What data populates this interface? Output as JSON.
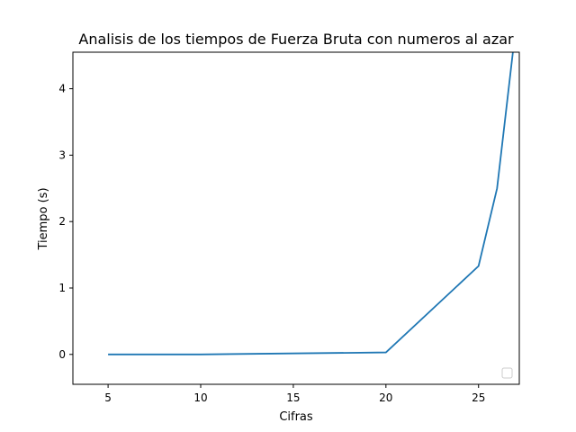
{
  "chart_data": {
    "type": "line",
    "title": "Analisis de los tiempos de Fuerza Bruta con numeros al azar",
    "xlabel": "Cifras",
    "ylabel": "Tiempo (s)",
    "xlim": [
      3.1,
      27.2
    ],
    "ylim": [
      -0.45,
      4.55
    ],
    "xticks": [
      5,
      10,
      15,
      20,
      25
    ],
    "yticks": [
      0,
      1,
      2,
      3,
      4
    ],
    "grid": false,
    "legend": {
      "placement": "bottom-right",
      "entries": []
    },
    "series": [
      {
        "name": "",
        "color": "#1f77b4",
        "x": [
          5,
          10,
          20,
          25,
          26,
          27
        ],
        "y": [
          0.0,
          0.0,
          0.03,
          1.33,
          2.5,
          4.9
        ]
      }
    ]
  }
}
